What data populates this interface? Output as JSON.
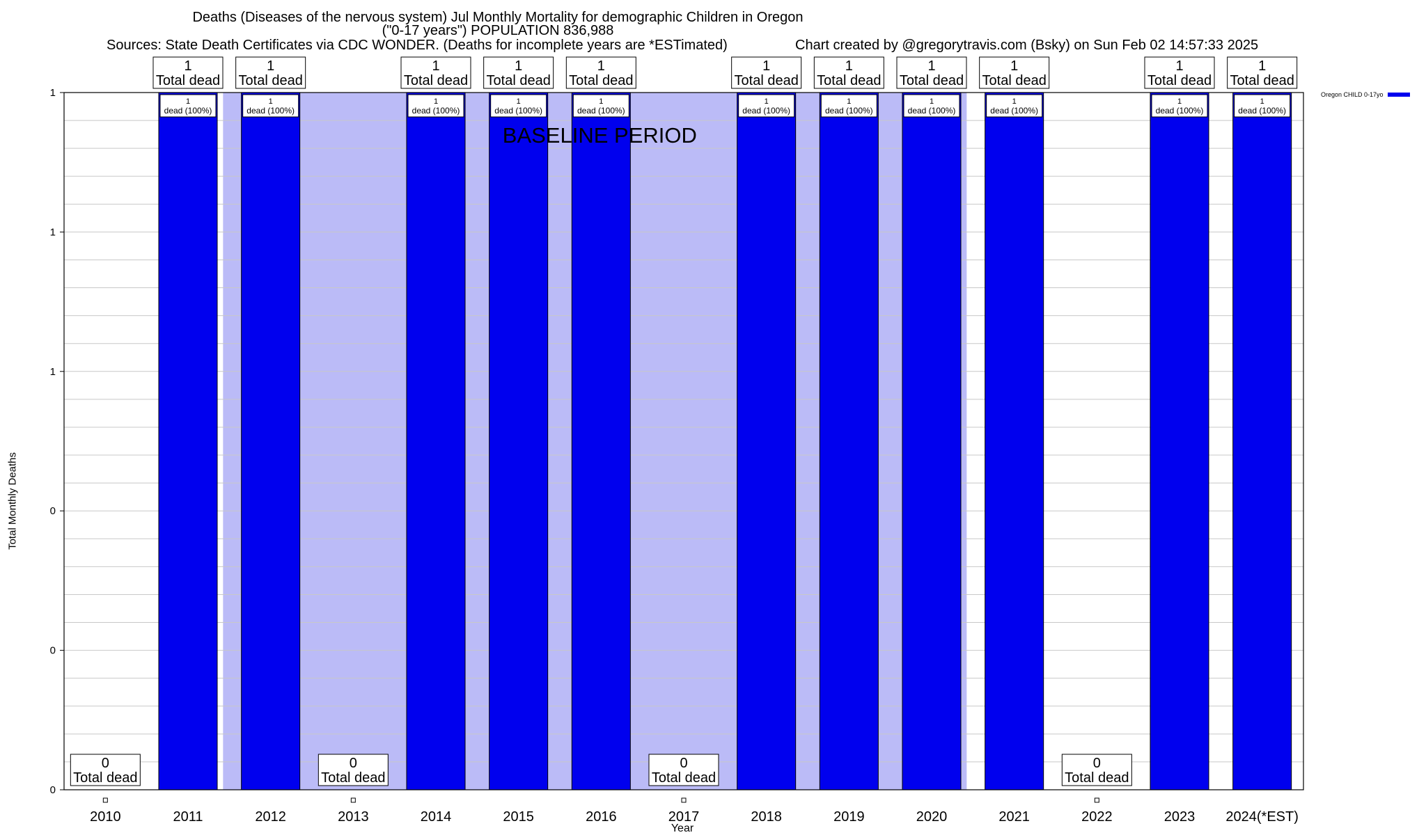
{
  "chart_data": {
    "type": "bar",
    "title_lines": [
      "Deaths (Diseases of the nervous system) Jul Monthly Mortality for demographic Children in Oregon",
      "(\"0-17 years\") POPULATION 836,988"
    ],
    "sources": "Sources: State Death Certificates via CDC WONDER. (Deaths for incomplete years are *ESTimated)",
    "credit": "Chart created by @gregorytravis.com (Bsky) on Sun Feb 02 14:57:33 2025",
    "xlabel": "Year",
    "ylabel": "Total Monthly Deaths",
    "ylim": [
      0,
      1
    ],
    "y_tick_labels": [
      "0",
      "0",
      "0",
      "1",
      "1",
      "1"
    ],
    "categories": [
      "2010",
      "2011",
      "2012",
      "2013",
      "2014",
      "2015",
      "2016",
      "2017",
      "2018",
      "2019",
      "2020",
      "2021",
      "2022",
      "2023",
      "2024(*EST)"
    ],
    "series": [
      {
        "name": "Oregon CHILD 0-17yo",
        "color": "#0000ee",
        "values": [
          0,
          1,
          1,
          0,
          1,
          1,
          1,
          0,
          1,
          1,
          1,
          1,
          0,
          1,
          1
        ]
      }
    ],
    "total_label_text": "Total dead",
    "bar_label_text": "dead (100%)",
    "baseline": {
      "label": "BASELINE PERIOD",
      "from": "2012",
      "to": "2020",
      "color": "#bbbbf7"
    },
    "grid": true,
    "legend_position": "top-right"
  }
}
